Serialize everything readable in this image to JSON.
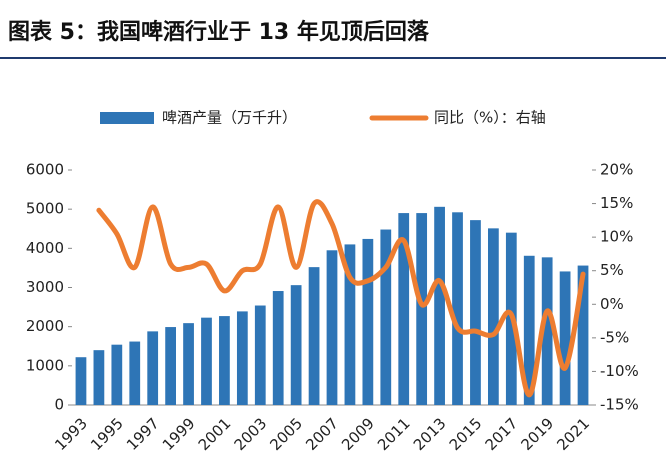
{
  "chart_data": {
    "type": "bar-line",
    "title": "图表 5：我国啤酒行业于 13 年见顶后回落",
    "categories": [
      "1993",
      null,
      "1995",
      null,
      "1997",
      null,
      "1999",
      null,
      "2001",
      null,
      "2003",
      null,
      "2005",
      null,
      "2007",
      null,
      "2009",
      null,
      "2011",
      null,
      "2013",
      null,
      "2015",
      null,
      "2017",
      null,
      "2019",
      null,
      "2021"
    ],
    "series": [
      {
        "name": "啤酒产量（万千升）",
        "type": "bar",
        "color": "#2e75b6",
        "values": [
          1220,
          1400,
          1540,
          1620,
          1880,
          1990,
          2090,
          2230,
          2270,
          2390,
          2540,
          2910,
          3060,
          3520,
          3950,
          4100,
          4240,
          4480,
          4900,
          4900,
          5060,
          4920,
          4720,
          4510,
          4400,
          3810,
          3770,
          3410,
          3560
        ]
      },
      {
        "name": "同比（%）：右轴",
        "type": "line",
        "axis": "y2",
        "color": "#ed7d31",
        "values": [
          null,
          14,
          10.5,
          5.5,
          14.5,
          6,
          5.5,
          6,
          2,
          5,
          6,
          14.5,
          5.5,
          15,
          12,
          4,
          3.5,
          5.5,
          9.5,
          0,
          3.5,
          -3.5,
          -4,
          -4.5,
          -1.5,
          -13.5,
          -1,
          -9.5,
          4.5
        ]
      }
    ],
    "ylim": [
      0,
      6000
    ],
    "yticks": [
      0,
      1000,
      2000,
      3000,
      4000,
      5000,
      6000
    ],
    "y2lim": [
      -15,
      20
    ],
    "y2ticks": [
      {
        "value": -15,
        "label": "-15%"
      },
      {
        "value": -10,
        "label": "-10%"
      },
      {
        "value": -5,
        "label": "-5%"
      },
      {
        "value": 0,
        "label": "0%"
      },
      {
        "value": 5,
        "label": "5%"
      },
      {
        "value": 10,
        "label": "10%"
      },
      {
        "value": 15,
        "label": "15%"
      },
      {
        "value": 20,
        "label": "20%"
      }
    ]
  }
}
